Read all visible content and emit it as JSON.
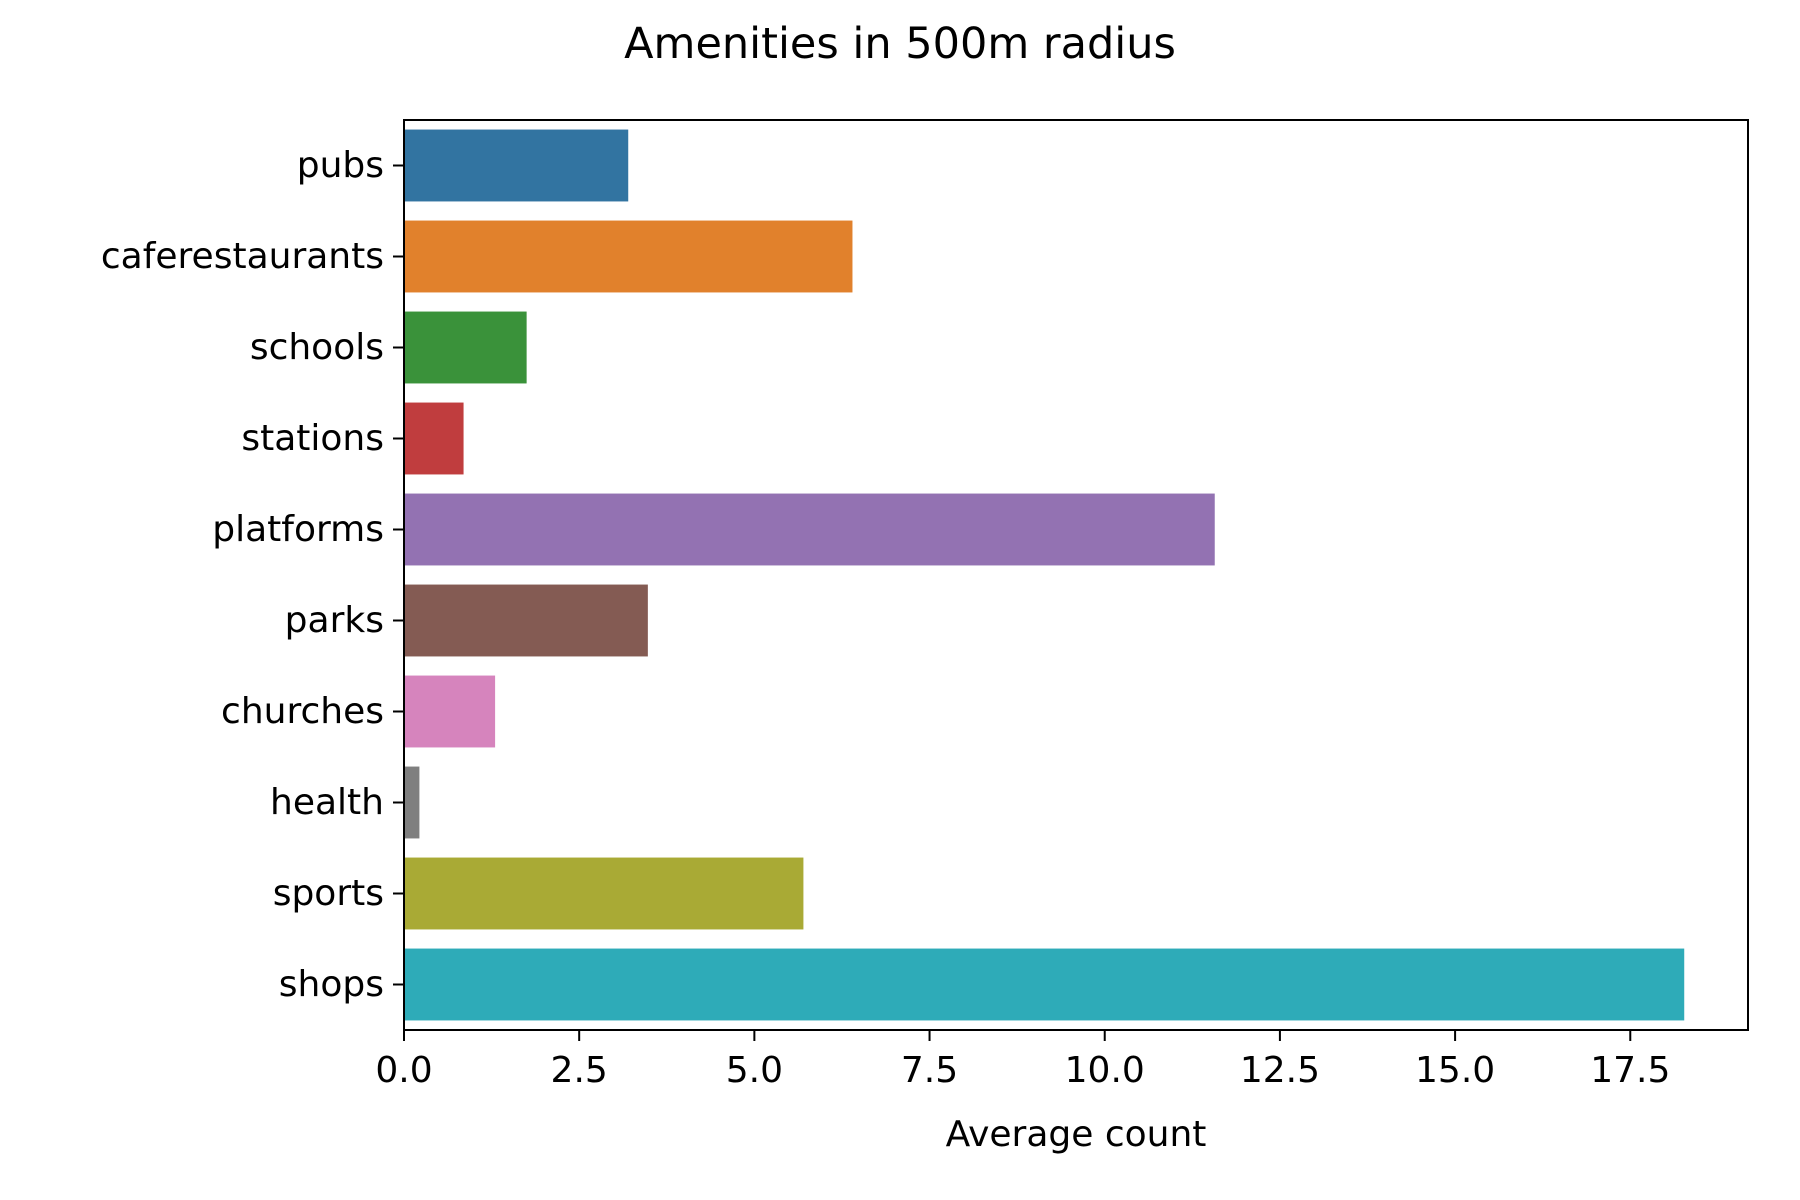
{
  "chart_data": {
    "type": "bar",
    "orientation": "horizontal",
    "title": "Amenities in 500m radius",
    "xlabel": "Average count",
    "ylabel": "",
    "xlim": [
      0,
      19.18
    ],
    "xticks": [
      "0.0",
      "2.5",
      "5.0",
      "7.5",
      "10.0",
      "12.5",
      "15.0",
      "17.5"
    ],
    "grid": false,
    "legend": "none",
    "categories": [
      "pubs",
      "caferestaurants",
      "schools",
      "stations",
      "platforms",
      "parks",
      "churches",
      "health",
      "sports",
      "shops"
    ],
    "values": [
      3.2,
      6.4,
      1.75,
      0.85,
      11.57,
      3.48,
      1.3,
      0.22,
      5.7,
      18.27
    ],
    "colors": [
      "#3274a1",
      "#e1812c",
      "#3a923a",
      "#c03d3e",
      "#9372b2",
      "#845b53",
      "#d684bd",
      "#7f7f7f",
      "#a9aa35",
      "#2eabb8"
    ]
  }
}
